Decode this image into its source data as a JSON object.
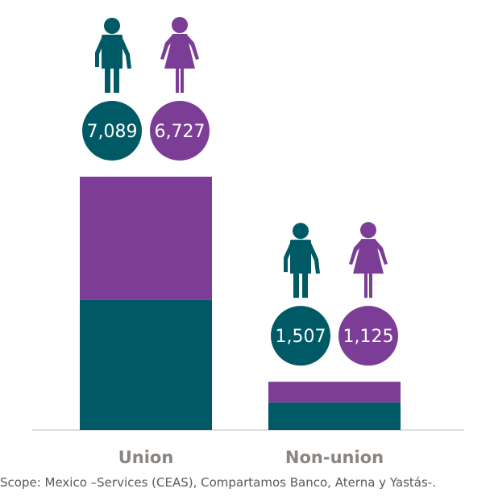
{
  "colors": {
    "men": "#005a65",
    "women": "#7b3d96",
    "baseline": "#bcbcbc"
  },
  "icons": {
    "men": "man-icon",
    "women": "woman-icon"
  },
  "chart_data": {
    "type": "bar",
    "stacked": true,
    "categories": [
      "Union",
      "Non-union"
    ],
    "series": [
      {
        "key": "men",
        "values": [
          7089,
          1507
        ],
        "labels": [
          "7,089",
          "1,507"
        ]
      },
      {
        "key": "women",
        "values": [
          6727,
          1125
        ],
        "labels": [
          "6,727",
          "1,125"
        ]
      }
    ],
    "title": "",
    "xlabel": "",
    "ylabel": ""
  },
  "footnote": "Scope: Mexico –Services (CEAS), Compartamos Banco, Aterna y Yastás-."
}
